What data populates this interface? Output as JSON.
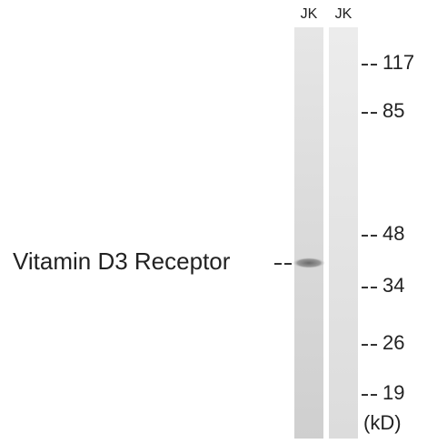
{
  "lanes": [
    {
      "label": "JK"
    },
    {
      "label": "JK"
    }
  ],
  "markers": [
    {
      "label": "117"
    },
    {
      "label": "85"
    },
    {
      "label": "48"
    },
    {
      "label": "34"
    },
    {
      "label": "26"
    },
    {
      "label": "19"
    }
  ],
  "unit": "(kD)",
  "band_label": "Vitamin D3 Receptor"
}
